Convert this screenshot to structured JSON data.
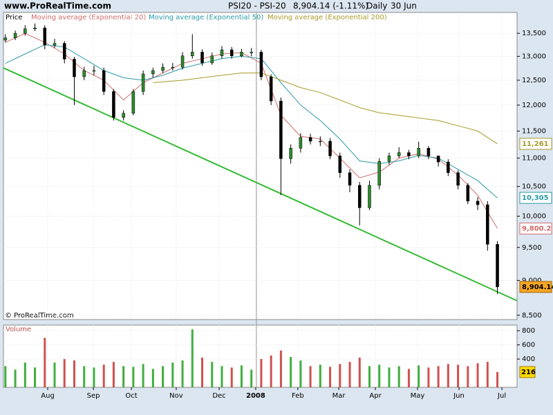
{
  "chart_data": {
    "type": "candlestick",
    "source": "www.ProRealTime.com",
    "title": "PSI20 - PSI-20",
    "last": "8,904.14 (-1.11%)",
    "period": "Daily",
    "date": "30 Jun",
    "price_label": "Price",
    "copyright": "© ProRealTime.com",
    "volume_label": "Volume",
    "log_scale": true,
    "grid": true,
    "xlim": [
      -1,
      260
    ],
    "ylim": [
      8440,
      13970
    ],
    "yticks": [
      {
        "value": 8500,
        "label": "8,500"
      },
      {
        "value": 9000,
        "label": "9,000"
      },
      {
        "value": 9500,
        "label": "9,500"
      },
      {
        "value": 10000,
        "label": "10,000"
      },
      {
        "value": 10500,
        "label": "10,500"
      },
      {
        "value": 11000,
        "label": "11,000"
      },
      {
        "value": 11500,
        "label": "11,500"
      },
      {
        "value": 12000,
        "label": "12,000"
      },
      {
        "value": 12500,
        "label": "12,500"
      },
      {
        "value": 13000,
        "label": "13,000"
      },
      {
        "value": 13500,
        "label": "13,500"
      }
    ],
    "xticks": [
      {
        "value": 21.5,
        "label": "Aug"
      },
      {
        "value": 44.7,
        "label": "Sep"
      },
      {
        "value": 64,
        "label": "Oct"
      },
      {
        "value": 86.8,
        "label": "Nov"
      },
      {
        "value": 108.6,
        "label": "Dec"
      },
      {
        "value": 127.2,
        "label": "2008"
      },
      {
        "value": 148.6,
        "label": "Feb"
      },
      {
        "value": 169.4,
        "label": "Mar"
      },
      {
        "value": 188,
        "label": "Apr"
      },
      {
        "value": 209.4,
        "label": "May"
      },
      {
        "value": 230.5,
        "label": "Jun"
      },
      {
        "value": 252.3,
        "label": "Jul"
      }
    ],
    "up_color": "#2e8b2e",
    "down_color": "#000000",
    "candles": {
      "x": [
        0,
        5,
        10,
        15,
        20,
        25,
        30,
        35,
        40,
        45,
        50,
        55,
        60,
        65,
        70,
        75,
        80,
        85,
        90,
        95,
        100,
        105,
        110,
        115,
        120,
        125,
        130,
        135,
        140,
        145,
        150,
        155,
        160,
        165,
        170,
        175,
        180,
        185,
        190,
        195,
        200,
        205,
        210,
        215,
        220,
        225,
        230,
        235,
        240,
        245,
        250
      ],
      "open": [
        13350,
        13400,
        13500,
        13600,
        13620,
        13240,
        13280,
        12940,
        12570,
        12700,
        12700,
        12270,
        11760,
        11840,
        12270,
        12630,
        12700,
        12770,
        12770,
        13010,
        13090,
        12860,
        13010,
        13140,
        13010,
        13090,
        13090,
        12570,
        12080,
        10990,
        11180,
        11380,
        11310,
        11310,
        11040,
        10740,
        10520,
        10140,
        10520,
        10940,
        11040,
        11100,
        11040,
        11180,
        11040,
        10930,
        10740,
        10520,
        10250,
        10190,
        9550
      ],
      "high": [
        13480,
        13560,
        13680,
        13720,
        13680,
        13380,
        13330,
        12990,
        12780,
        12800,
        12760,
        12320,
        11900,
        12320,
        12700,
        12760,
        12850,
        12860,
        13090,
        13480,
        13150,
        13080,
        13220,
        13200,
        13160,
        13180,
        13140,
        12620,
        12150,
        11250,
        11460,
        11450,
        11400,
        11370,
        11100,
        10800,
        10580,
        10600,
        11000,
        11100,
        11200,
        11150,
        11300,
        11220,
        11020,
        10980,
        10780,
        10560,
        10320,
        10250,
        9600
      ],
      "low": [
        13300,
        13350,
        13450,
        13550,
        13150,
        13180,
        12850,
        12000,
        12500,
        12600,
        12200,
        11700,
        11700,
        11800,
        12200,
        12550,
        12650,
        12700,
        12720,
        12950,
        12800,
        12820,
        12950,
        12950,
        12980,
        13000,
        12500,
        12000,
        10350,
        10900,
        11100,
        11250,
        11220,
        10980,
        10650,
        10400,
        9850,
        10100,
        10450,
        10880,
        11000,
        10980,
        11000,
        10980,
        10850,
        10680,
        10450,
        10200,
        10100,
        9450,
        8800
      ],
      "close": [
        13400,
        13500,
        13600,
        13620,
        13240,
        13280,
        12940,
        12570,
        12700,
        12700,
        12270,
        11760,
        11840,
        12270,
        12630,
        12700,
        12770,
        12770,
        13010,
        13090,
        12860,
        13010,
        13140,
        13010,
        13090,
        13090,
        12570,
        12080,
        10990,
        11180,
        11380,
        11310,
        11310,
        11040,
        10740,
        10520,
        10140,
        10520,
        10940,
        11040,
        11100,
        11040,
        11180,
        11040,
        10930,
        10740,
        10520,
        10250,
        10190,
        9550,
        8904.14
      ],
      "value_label": "8,904.14",
      "color": "#f5a623"
    },
    "series": [
      {
        "name": "Moving average (Exponential 20)",
        "color": "#d26a6a",
        "value_label": "9,800.2",
        "x": [
          0,
          10,
          20,
          30,
          40,
          50,
          60,
          70,
          80,
          90,
          100,
          110,
          120,
          130,
          140,
          150,
          160,
          170,
          180,
          190,
          200,
          210,
          220,
          230,
          240,
          250
        ],
        "values": [
          13300,
          13500,
          13300,
          13050,
          12700,
          12500,
          12100,
          12450,
          12650,
          12850,
          12950,
          13050,
          13080,
          12850,
          11800,
          11400,
          11350,
          11000,
          10650,
          10750,
          11000,
          11080,
          10980,
          10700,
          10350,
          9800.2
        ]
      },
      {
        "name": "Moving average (Exponential 50)",
        "color": "#2a9aa8",
        "value_label": "10,305",
        "x": [
          0,
          10,
          20,
          30,
          40,
          50,
          60,
          70,
          80,
          90,
          100,
          110,
          120,
          130,
          140,
          150,
          160,
          170,
          180,
          190,
          200,
          210,
          220,
          230,
          240,
          250
        ],
        "values": [
          12850,
          13050,
          13250,
          13200,
          12950,
          12700,
          12550,
          12500,
          12600,
          12750,
          12850,
          12950,
          13000,
          12950,
          12450,
          12000,
          11700,
          11350,
          10950,
          10900,
          10950,
          11050,
          11000,
          10800,
          10600,
          10305
        ]
      },
      {
        "name": "Moving average (Exponential 200)",
        "color": "#a89a2a",
        "value_label": "11,261",
        "x": [
          75,
          90,
          100,
          110,
          120,
          130,
          140,
          150,
          160,
          170,
          180,
          190,
          200,
          210,
          220,
          230,
          240,
          250
        ],
        "values": [
          12450,
          12500,
          12550,
          12600,
          12650,
          12650,
          12500,
          12350,
          12250,
          12100,
          11950,
          11850,
          11800,
          11750,
          11700,
          11600,
          11500,
          11261
        ]
      }
    ],
    "trendline": {
      "color": "#33bb33",
      "x": [
        -1,
        260
      ],
      "values": [
        12755,
        8705
      ]
    },
    "volume": {
      "ylim": [
        0,
        880
      ],
      "yticks": [
        400,
        600,
        800
      ],
      "value_label": "216",
      "up_color": "#3fae3f",
      "down_color": "#d05050",
      "values": [
        300,
        250,
        350,
        280,
        700,
        350,
        400,
        380,
        300,
        280,
        320,
        360,
        300,
        290,
        330,
        260,
        300,
        350,
        380,
        820,
        420,
        360,
        300,
        280,
        310,
        250,
        400,
        450,
        520,
        430,
        380,
        300,
        320,
        290,
        330,
        360,
        420,
        300,
        320,
        280,
        300,
        260,
        310,
        280,
        300,
        330,
        320,
        300,
        340,
        360,
        216
      ]
    }
  }
}
